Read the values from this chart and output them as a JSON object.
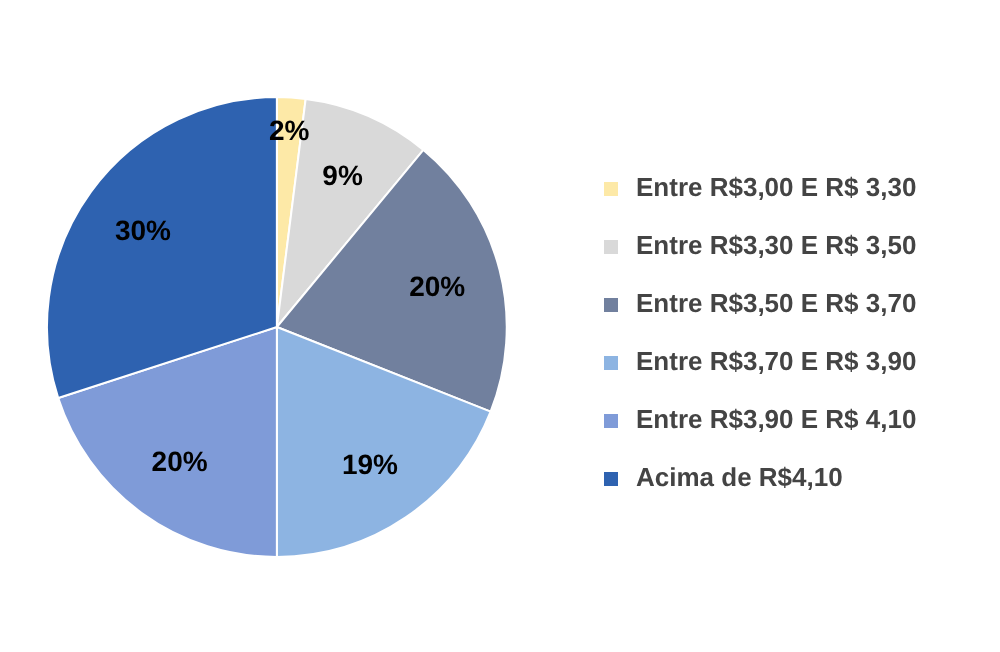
{
  "chart_data": {
    "type": "pie",
    "categories": [
      "Entre R$3,00 E R$ 3,30",
      "Entre R$3,30 E R$ 3,50",
      "Entre R$3,50 E R$ 3,70",
      "Entre R$3,70 E R$ 3,90",
      "Entre R$3,90 E R$ 4,10",
      "Acima de R$4,10"
    ],
    "values": [
      2,
      9,
      20,
      19,
      20,
      30
    ],
    "colors": [
      "#fde9a7",
      "#d9d9d9",
      "#71809e",
      "#8db4e2",
      "#7f9bd8",
      "#2e62b0"
    ],
    "value_labels": [
      "2%",
      "9%",
      "20%",
      "19%",
      "20%",
      "30%"
    ],
    "legend": "right"
  }
}
